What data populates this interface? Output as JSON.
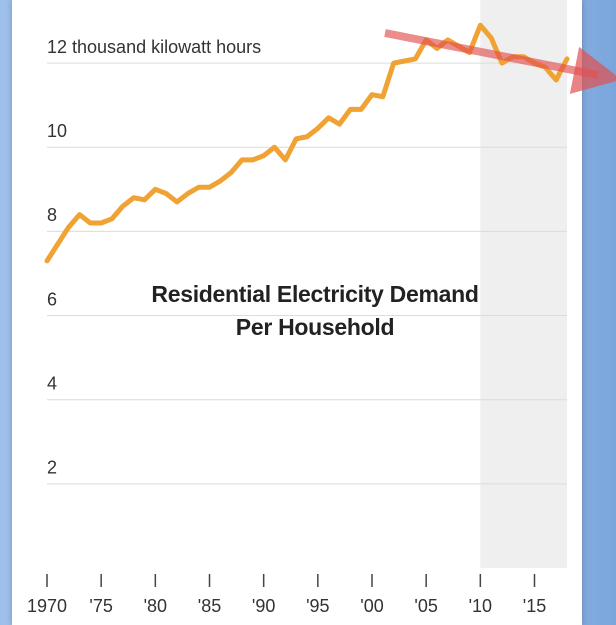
{
  "chart_data": {
    "type": "line",
    "title": "Residential Electricity Demand Per Household",
    "x": [
      1970,
      1971,
      1972,
      1973,
      1974,
      1975,
      1976,
      1977,
      1978,
      1979,
      1980,
      1981,
      1982,
      1983,
      1984,
      1985,
      1986,
      1987,
      1988,
      1989,
      1990,
      1991,
      1992,
      1993,
      1994,
      1995,
      1996,
      1997,
      1998,
      1999,
      2000,
      2001,
      2002,
      2003,
      2004,
      2005,
      2006,
      2007,
      2008,
      2009,
      2010,
      2011,
      2012,
      2013,
      2014,
      2015,
      2016,
      2017,
      2018
    ],
    "values": [
      7.3,
      7.7,
      8.1,
      8.4,
      8.2,
      8.2,
      8.3,
      8.6,
      8.8,
      8.75,
      9.0,
      8.9,
      8.7,
      8.9,
      9.05,
      9.05,
      9.2,
      9.4,
      9.7,
      9.7,
      9.8,
      10.0,
      9.7,
      10.2,
      10.25,
      10.45,
      10.7,
      10.55,
      10.9,
      10.9,
      11.25,
      11.2,
      12.0,
      12.05,
      12.1,
      12.55,
      12.35,
      12.55,
      12.4,
      12.25,
      12.9,
      12.6,
      12.0,
      12.15,
      12.15,
      12.0,
      11.9,
      11.6,
      12.1
    ],
    "color": "#f0a234",
    "xlim": [
      1970,
      2018
    ],
    "xticks": [
      1970,
      {
        "value": 1975,
        "label": "'75"
      },
      {
        "value": 1980,
        "label": "'80"
      },
      {
        "value": 1985,
        "label": "'85"
      },
      {
        "value": 1990,
        "label": "'90"
      },
      {
        "value": 1995,
        "label": "'95"
      },
      {
        "value": 2000,
        "label": "'00"
      },
      {
        "value": 2005,
        "label": "'05"
      },
      {
        "value": 2010,
        "label": "'10"
      },
      {
        "value": 2015,
        "label": "'15"
      }
    ],
    "ylim": [
      0,
      13.5
    ],
    "yticks": [
      2,
      4,
      6,
      8,
      10,
      {
        "value": 12,
        "label": "12 thousand kilowatt hours"
      }
    ],
    "grid": true,
    "shaded_xrange": [
      2010,
      2018
    ]
  }
}
